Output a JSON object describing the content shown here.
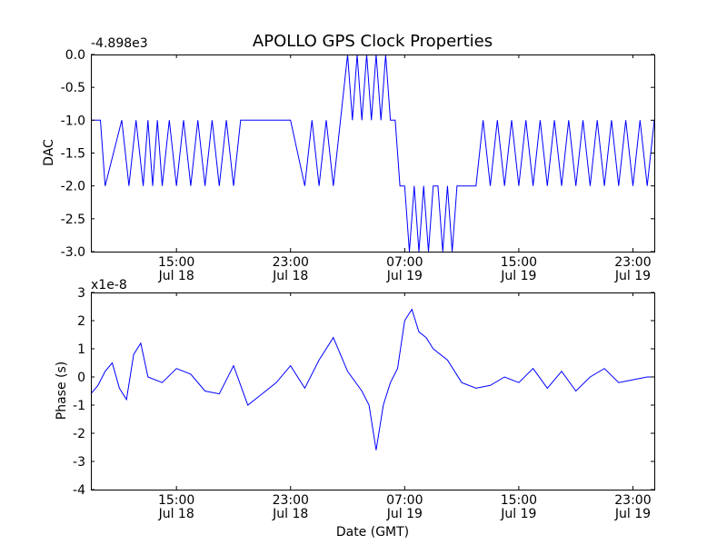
{
  "title": "APOLLO GPS Clock Properties",
  "chart_data": [
    {
      "type": "line",
      "ylabel": "DAC",
      "offset_text": "-4.898e3",
      "ylim": [
        -3.0,
        0.0
      ],
      "yticks": [
        0.0,
        -0.5,
        -1.0,
        -1.5,
        -2.0,
        -2.5,
        -3.0
      ],
      "ytick_labels": [
        "0.0",
        "-0.5",
        "-1.0",
        "-1.5",
        "-2.0",
        "-2.5",
        "-3.0"
      ],
      "xlim": [
        "2014-07-18 09:00",
        "2014-07-20 00:30"
      ],
      "xticks": [
        {
          "time": "2014-07-18 15:00",
          "line1": "15:00",
          "line2": "Jul 18"
        },
        {
          "time": "2014-07-18 23:00",
          "line1": "23:00",
          "line2": "Jul 18"
        },
        {
          "time": "2014-07-19 07:00",
          "line1": "07:00",
          "line2": "Jul 19"
        },
        {
          "time": "2014-07-19 15:00",
          "line1": "15:00",
          "line2": "Jul 19"
        },
        {
          "time": "2014-07-19 23:00",
          "line1": "23:00",
          "line2": "Jul 19"
        }
      ],
      "color": "#0000ff",
      "series": [
        {
          "x": [
            "2014-07-18 09:00",
            "2014-07-18 09:40",
            "2014-07-18 10:00",
            "2014-07-18 11:10",
            "2014-07-18 11:40",
            "2014-07-18 12:10",
            "2014-07-18 12:40",
            "2014-07-18 13:00",
            "2014-07-18 13:20",
            "2014-07-18 13:40",
            "2014-07-18 14:00",
            "2014-07-18 14:30",
            "2014-07-18 15:00",
            "2014-07-18 15:30",
            "2014-07-18 16:00",
            "2014-07-18 16:30",
            "2014-07-18 17:00",
            "2014-07-18 17:30",
            "2014-07-18 18:00",
            "2014-07-18 18:30",
            "2014-07-18 19:00",
            "2014-07-18 19:30",
            "2014-07-18 20:00",
            "2014-07-18 20:30",
            "2014-07-18 21:00",
            "2014-07-18 22:00",
            "2014-07-18 23:00",
            "2014-07-19 00:00",
            "2014-07-19 00:30",
            "2014-07-19 01:00",
            "2014-07-19 01:30",
            "2014-07-19 02:00",
            "2014-07-19 02:30",
            "2014-07-19 03:00",
            "2014-07-19 03:20",
            "2014-07-19 03:40",
            "2014-07-19 04:00",
            "2014-07-19 04:20",
            "2014-07-19 04:40",
            "2014-07-19 05:00",
            "2014-07-19 05:20",
            "2014-07-19 05:40",
            "2014-07-19 06:00",
            "2014-07-19 06:20",
            "2014-07-19 06:40",
            "2014-07-19 07:00",
            "2014-07-19 07:20",
            "2014-07-19 07:40",
            "2014-07-19 08:00",
            "2014-07-19 08:20",
            "2014-07-19 08:40",
            "2014-07-19 09:00",
            "2014-07-19 09:20",
            "2014-07-19 09:40",
            "2014-07-19 10:00",
            "2014-07-19 10:20",
            "2014-07-19 10:40",
            "2014-07-19 11:00",
            "2014-07-19 11:30",
            "2014-07-19 12:00",
            "2014-07-19 12:30",
            "2014-07-19 13:00",
            "2014-07-19 13:30",
            "2014-07-19 14:00",
            "2014-07-19 14:30",
            "2014-07-19 15:00",
            "2014-07-19 15:30",
            "2014-07-19 16:00",
            "2014-07-19 16:30",
            "2014-07-19 17:00",
            "2014-07-19 17:30",
            "2014-07-19 18:00",
            "2014-07-19 18:30",
            "2014-07-19 19:00",
            "2014-07-19 19:30",
            "2014-07-19 20:00",
            "2014-07-19 20:30",
            "2014-07-19 21:00",
            "2014-07-19 21:30",
            "2014-07-19 22:00",
            "2014-07-19 22:30",
            "2014-07-19 23:00",
            "2014-07-19 23:30",
            "2014-07-20 00:00",
            "2014-07-20 00:30"
          ],
          "y": [
            -1.0,
            -1.0,
            -2.0,
            -1.0,
            -2.0,
            -1.0,
            -2.0,
            -1.0,
            -2.0,
            -1.0,
            -2.0,
            -1.0,
            -2.0,
            -1.0,
            -2.0,
            -1.0,
            -2.0,
            -1.0,
            -2.0,
            -1.0,
            -2.0,
            -1.0,
            -1.0,
            -1.0,
            -1.0,
            -1.0,
            -1.0,
            -2.0,
            -1.0,
            -2.0,
            -1.0,
            -2.0,
            -1.0,
            -0.0,
            -1.0,
            -0.0,
            -1.0,
            -0.0,
            -1.0,
            -0.0,
            -1.0,
            -0.0,
            -1.0,
            -1.0,
            -2.0,
            -2.0,
            -3.0,
            -2.0,
            -3.0,
            -2.0,
            -3.0,
            -2.0,
            -2.0,
            -3.0,
            -2.0,
            -3.0,
            -2.0,
            -2.0,
            -2.0,
            -2.0,
            -1.0,
            -2.0,
            -1.0,
            -2.0,
            -1.0,
            -2.0,
            -1.0,
            -2.0,
            -1.0,
            -2.0,
            -1.0,
            -2.0,
            -1.0,
            -2.0,
            -1.0,
            -2.0,
            -1.0,
            -2.0,
            -1.0,
            -2.0,
            -1.0,
            -2.0,
            -1.0,
            -2.0,
            -1.0
          ]
        }
      ]
    },
    {
      "type": "line",
      "ylabel": "Phase (s)",
      "xlabel": "Date (GMT)",
      "offset_text": "x1e-8",
      "ylim": [
        -4,
        3
      ],
      "yticks": [
        3,
        2,
        1,
        0,
        -1,
        -2,
        -3,
        -4
      ],
      "ytick_labels": [
        "3",
        "2",
        "1",
        "0",
        "-1",
        "-2",
        "-3",
        "-4"
      ],
      "xlim": [
        "2014-07-18 09:00",
        "2014-07-20 00:30"
      ],
      "xticks": [
        {
          "time": "2014-07-18 15:00",
          "line1": "15:00",
          "line2": "Jul 18"
        },
        {
          "time": "2014-07-18 23:00",
          "line1": "23:00",
          "line2": "Jul 18"
        },
        {
          "time": "2014-07-19 07:00",
          "line1": "07:00",
          "line2": "Jul 19"
        },
        {
          "time": "2014-07-19 15:00",
          "line1": "15:00",
          "line2": "Jul 19"
        },
        {
          "time": "2014-07-19 23:00",
          "line1": "23:00",
          "line2": "Jul 19"
        }
      ],
      "color": "#0000ff",
      "series": [
        {
          "x": [
            "2014-07-18 09:00",
            "2014-07-18 09:30",
            "2014-07-18 10:00",
            "2014-07-18 10:30",
            "2014-07-18 11:00",
            "2014-07-18 11:30",
            "2014-07-18 12:00",
            "2014-07-18 12:30",
            "2014-07-18 13:00",
            "2014-07-18 14:00",
            "2014-07-18 15:00",
            "2014-07-18 16:00",
            "2014-07-18 17:00",
            "2014-07-18 18:00",
            "2014-07-18 19:00",
            "2014-07-18 20:00",
            "2014-07-18 21:00",
            "2014-07-18 22:00",
            "2014-07-18 23:00",
            "2014-07-19 00:00",
            "2014-07-19 01:00",
            "2014-07-19 02:00",
            "2014-07-19 03:00",
            "2014-07-19 04:00",
            "2014-07-19 04:30",
            "2014-07-19 05:00",
            "2014-07-19 05:30",
            "2014-07-19 06:00",
            "2014-07-19 06:30",
            "2014-07-19 07:00",
            "2014-07-19 07:30",
            "2014-07-19 08:00",
            "2014-07-19 08:30",
            "2014-07-19 09:00",
            "2014-07-19 10:00",
            "2014-07-19 11:00",
            "2014-07-19 12:00",
            "2014-07-19 13:00",
            "2014-07-19 14:00",
            "2014-07-19 15:00",
            "2014-07-19 16:00",
            "2014-07-19 17:00",
            "2014-07-19 18:00",
            "2014-07-19 19:00",
            "2014-07-19 20:00",
            "2014-07-19 21:00",
            "2014-07-19 22:00",
            "2014-07-19 23:00",
            "2014-07-20 00:00",
            "2014-07-20 00:30"
          ],
          "y": [
            -0.6,
            -0.3,
            0.2,
            0.5,
            -0.4,
            -0.8,
            0.8,
            1.2,
            0.0,
            -0.2,
            0.3,
            0.1,
            -0.5,
            -0.6,
            0.4,
            -1.0,
            -0.6,
            -0.2,
            0.4,
            -0.4,
            0.6,
            1.4,
            0.2,
            -0.5,
            -1.0,
            -2.6,
            -1.0,
            -0.2,
            0.3,
            2.0,
            2.4,
            1.6,
            1.4,
            1.0,
            0.6,
            -0.2,
            -0.4,
            -0.3,
            0.0,
            -0.2,
            0.3,
            -0.4,
            0.2,
            -0.5,
            0.0,
            0.3,
            -0.2,
            -0.1,
            0.0,
            0.0
          ]
        }
      ]
    }
  ]
}
